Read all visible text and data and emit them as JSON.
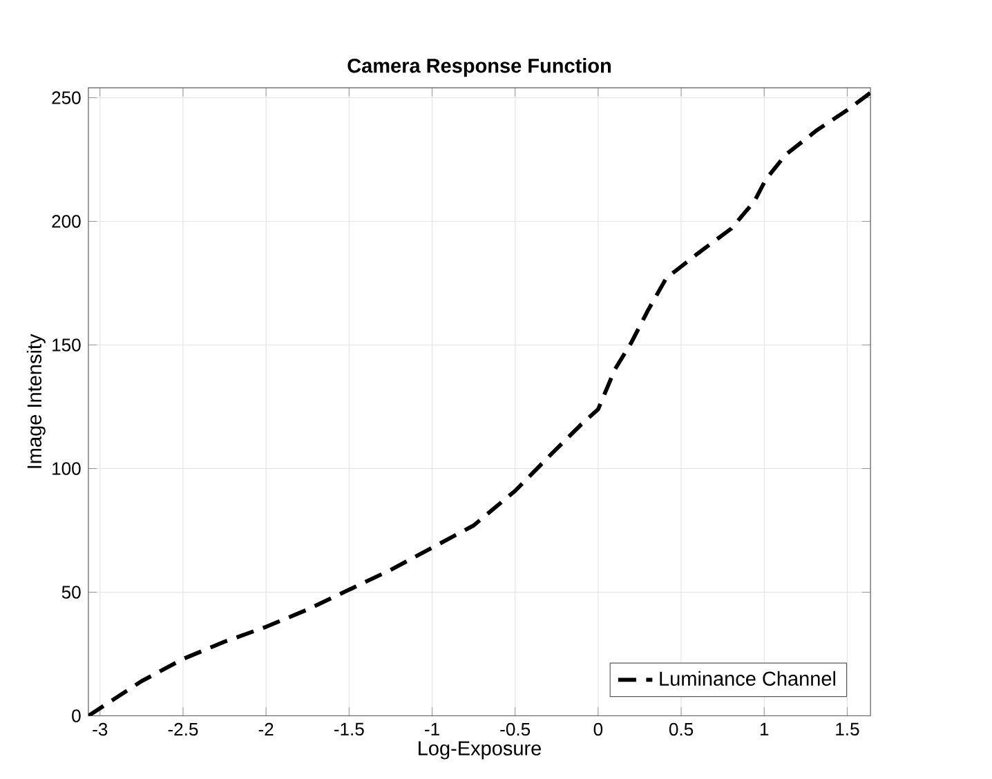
{
  "chart_data": {
    "type": "line",
    "title": "Camera Response Function",
    "xlabel": "Log-Exposure",
    "ylabel": "Image Intensity",
    "series": [
      {
        "name": "Luminance Channel",
        "color": "#000000",
        "line_style": "dashed",
        "x": [
          -3.07,
          -2.75,
          -2.5,
          -2.25,
          -2,
          -1.75,
          -1.5,
          -1.25,
          -1,
          -0.75,
          -0.5,
          -0.28,
          -0.1,
          0,
          0.1,
          0.2,
          0.3,
          0.41,
          0.6,
          0.8,
          0.94,
          1.01,
          1.13,
          1.32,
          1.5,
          1.64
        ],
        "values": [
          0,
          14,
          23,
          30,
          36,
          43,
          51,
          59,
          68,
          77,
          91,
          106,
          118,
          124,
          140,
          151,
          164,
          177,
          187,
          197,
          208,
          217,
          227,
          237,
          245,
          252
        ]
      }
    ],
    "xlim": [
      -3.07,
      1.64
    ],
    "ylim": [
      0,
      254
    ],
    "xticks": [
      -3,
      -2.5,
      -2,
      -1.5,
      -1,
      -0.5,
      0,
      0.5,
      1,
      1.5
    ],
    "yticks": [
      0,
      50,
      100,
      150,
      200,
      250
    ],
    "grid": true,
    "legend": "bottom right",
    "marker": "none"
  }
}
